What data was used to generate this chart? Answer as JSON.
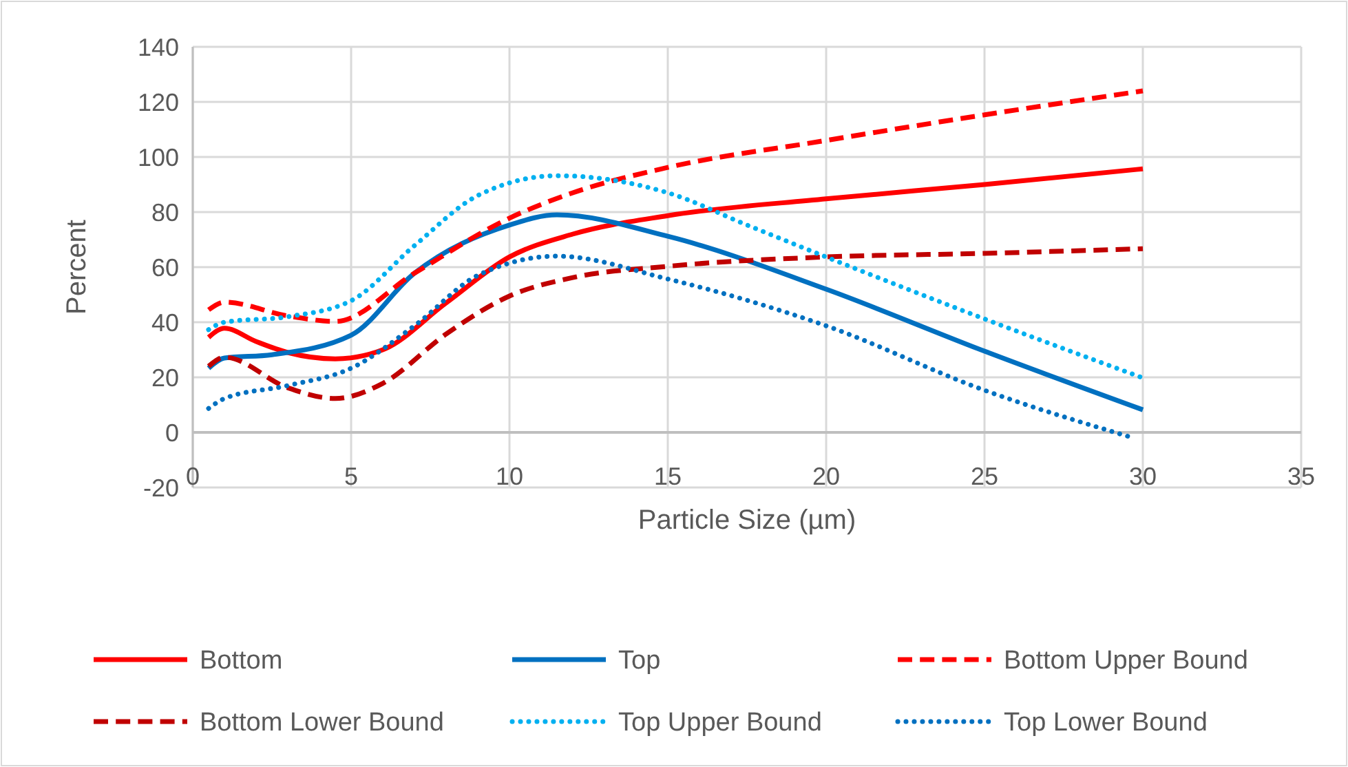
{
  "chart_data": {
    "type": "line",
    "xlabel": "Particle Size (µm)",
    "ylabel": "Percent",
    "xlim": [
      0,
      35
    ],
    "xticks": [
      0,
      5,
      10,
      15,
      20,
      25,
      30,
      35
    ],
    "ylim": [
      -20,
      140
    ],
    "yticks": [
      -20,
      0,
      20,
      40,
      60,
      80,
      100,
      120,
      140
    ],
    "grid": true,
    "legend": "bottom",
    "marker": "none",
    "series": [
      {
        "name": "Bottom",
        "color": "#ff0000",
        "line_style": "solid",
        "x": [
          0.5,
          1,
          2,
          3,
          4.5,
          6,
          8,
          10,
          12,
          15,
          20,
          25,
          30
        ],
        "values": [
          34.5,
          37.8,
          33,
          29,
          26.7,
          30,
          47,
          63.7,
          72,
          78.7,
          84.8,
          90,
          95.7
        ]
      },
      {
        "name": "Top",
        "color": "#0070c0",
        "line_style": "solid",
        "x": [
          0.5,
          1,
          2.5,
          5,
          7,
          10,
          11.5,
          15,
          20,
          25,
          30
        ],
        "values": [
          23.3,
          27,
          28.2,
          35.3,
          57.8,
          75.3,
          79,
          71.2,
          52,
          29.5,
          8.2
        ]
      },
      {
        "name": "Bottom Upper Bound",
        "color": "#ff0000",
        "line_style": "dashed",
        "x": [
          0.5,
          1,
          3,
          4.5,
          7,
          10,
          12,
          15,
          20,
          25,
          30
        ],
        "values": [
          44.5,
          47.3,
          42.3,
          40.3,
          57.8,
          77.8,
          87,
          96.2,
          106,
          115.3,
          124
        ]
      },
      {
        "name": "Bottom Lower Bound",
        "color": "#c00000",
        "line_style": "dashed",
        "x": [
          0.5,
          1,
          3,
          4.5,
          6,
          8,
          10,
          12,
          15,
          20,
          25,
          30
        ],
        "values": [
          24,
          27.3,
          16.2,
          12.3,
          17.8,
          35.7,
          49.5,
          56.2,
          60.3,
          63.7,
          65,
          66.7
        ]
      },
      {
        "name": "Top Upper Bound",
        "color": "#00b0f0",
        "line_style": "dotted",
        "x": [
          0.5,
          1,
          3,
          5,
          7,
          9,
          11.5,
          15,
          17.5,
          20,
          25,
          30
        ],
        "values": [
          37.3,
          40,
          42,
          47.8,
          67.8,
          86,
          93.2,
          87,
          75.3,
          63.7,
          41.2,
          19.8
        ]
      },
      {
        "name": "Top Lower Bound",
        "color": "#0070c0",
        "line_style": "dotted",
        "x": [
          0.5,
          1,
          3,
          5,
          7,
          9,
          11.5,
          15,
          20,
          25,
          29.7
        ],
        "values": [
          8.7,
          12.3,
          17,
          23.3,
          38.7,
          57,
          64,
          55.7,
          38.7,
          15.3,
          -2
        ]
      }
    ]
  }
}
